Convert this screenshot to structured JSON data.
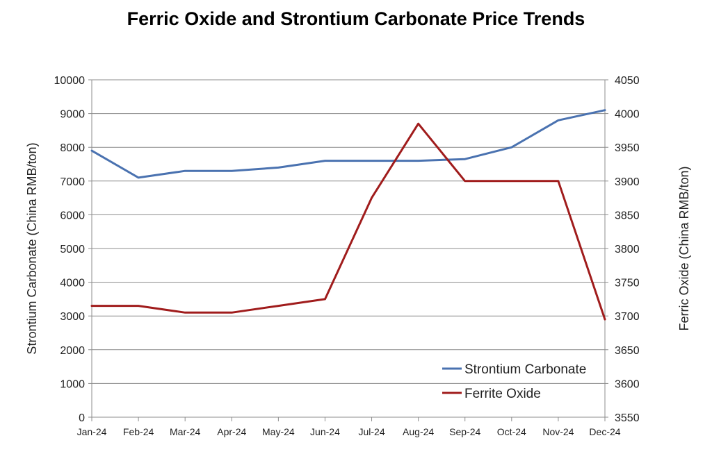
{
  "chart_data": {
    "type": "line",
    "title": "Ferric Oxide and Strontium Carbonate Price Trends",
    "categories": [
      "Jan-24",
      "Feb-24",
      "Mar-24",
      "Apr-24",
      "May-24",
      "Jun-24",
      "Jul-24",
      "Aug-24",
      "Sep-24",
      "Oct-24",
      "Nov-24",
      "Dec-24"
    ],
    "ylabel": "Strontium Carbonate (China RMB/ton)",
    "y2label": "Ferric Oxide (China RMB/ton)",
    "ylim": [
      0,
      10000
    ],
    "y2lim": [
      3550,
      4050
    ],
    "yticks": [
      0,
      1000,
      2000,
      3000,
      4000,
      5000,
      6000,
      7000,
      8000,
      9000,
      10000
    ],
    "y2ticks": [
      3550,
      3600,
      3650,
      3700,
      3750,
      3800,
      3850,
      3900,
      3950,
      4000,
      4050
    ],
    "grid": true,
    "legend_position": "bottom-right",
    "series": [
      {
        "name": "Strontium Carbonate",
        "axis": "left",
        "color": "#4a72b0",
        "values": [
          7900,
          7100,
          7300,
          7300,
          7400,
          7600,
          7600,
          7600,
          7650,
          8000,
          8800,
          9100
        ]
      },
      {
        "name": "Ferrite Oxide",
        "axis": "right",
        "color": "#a01c1c",
        "values": [
          3715,
          3715,
          3705,
          3705,
          3715,
          3725,
          3875,
          3985,
          3900,
          3900,
          3900,
          3695
        ]
      }
    ]
  }
}
